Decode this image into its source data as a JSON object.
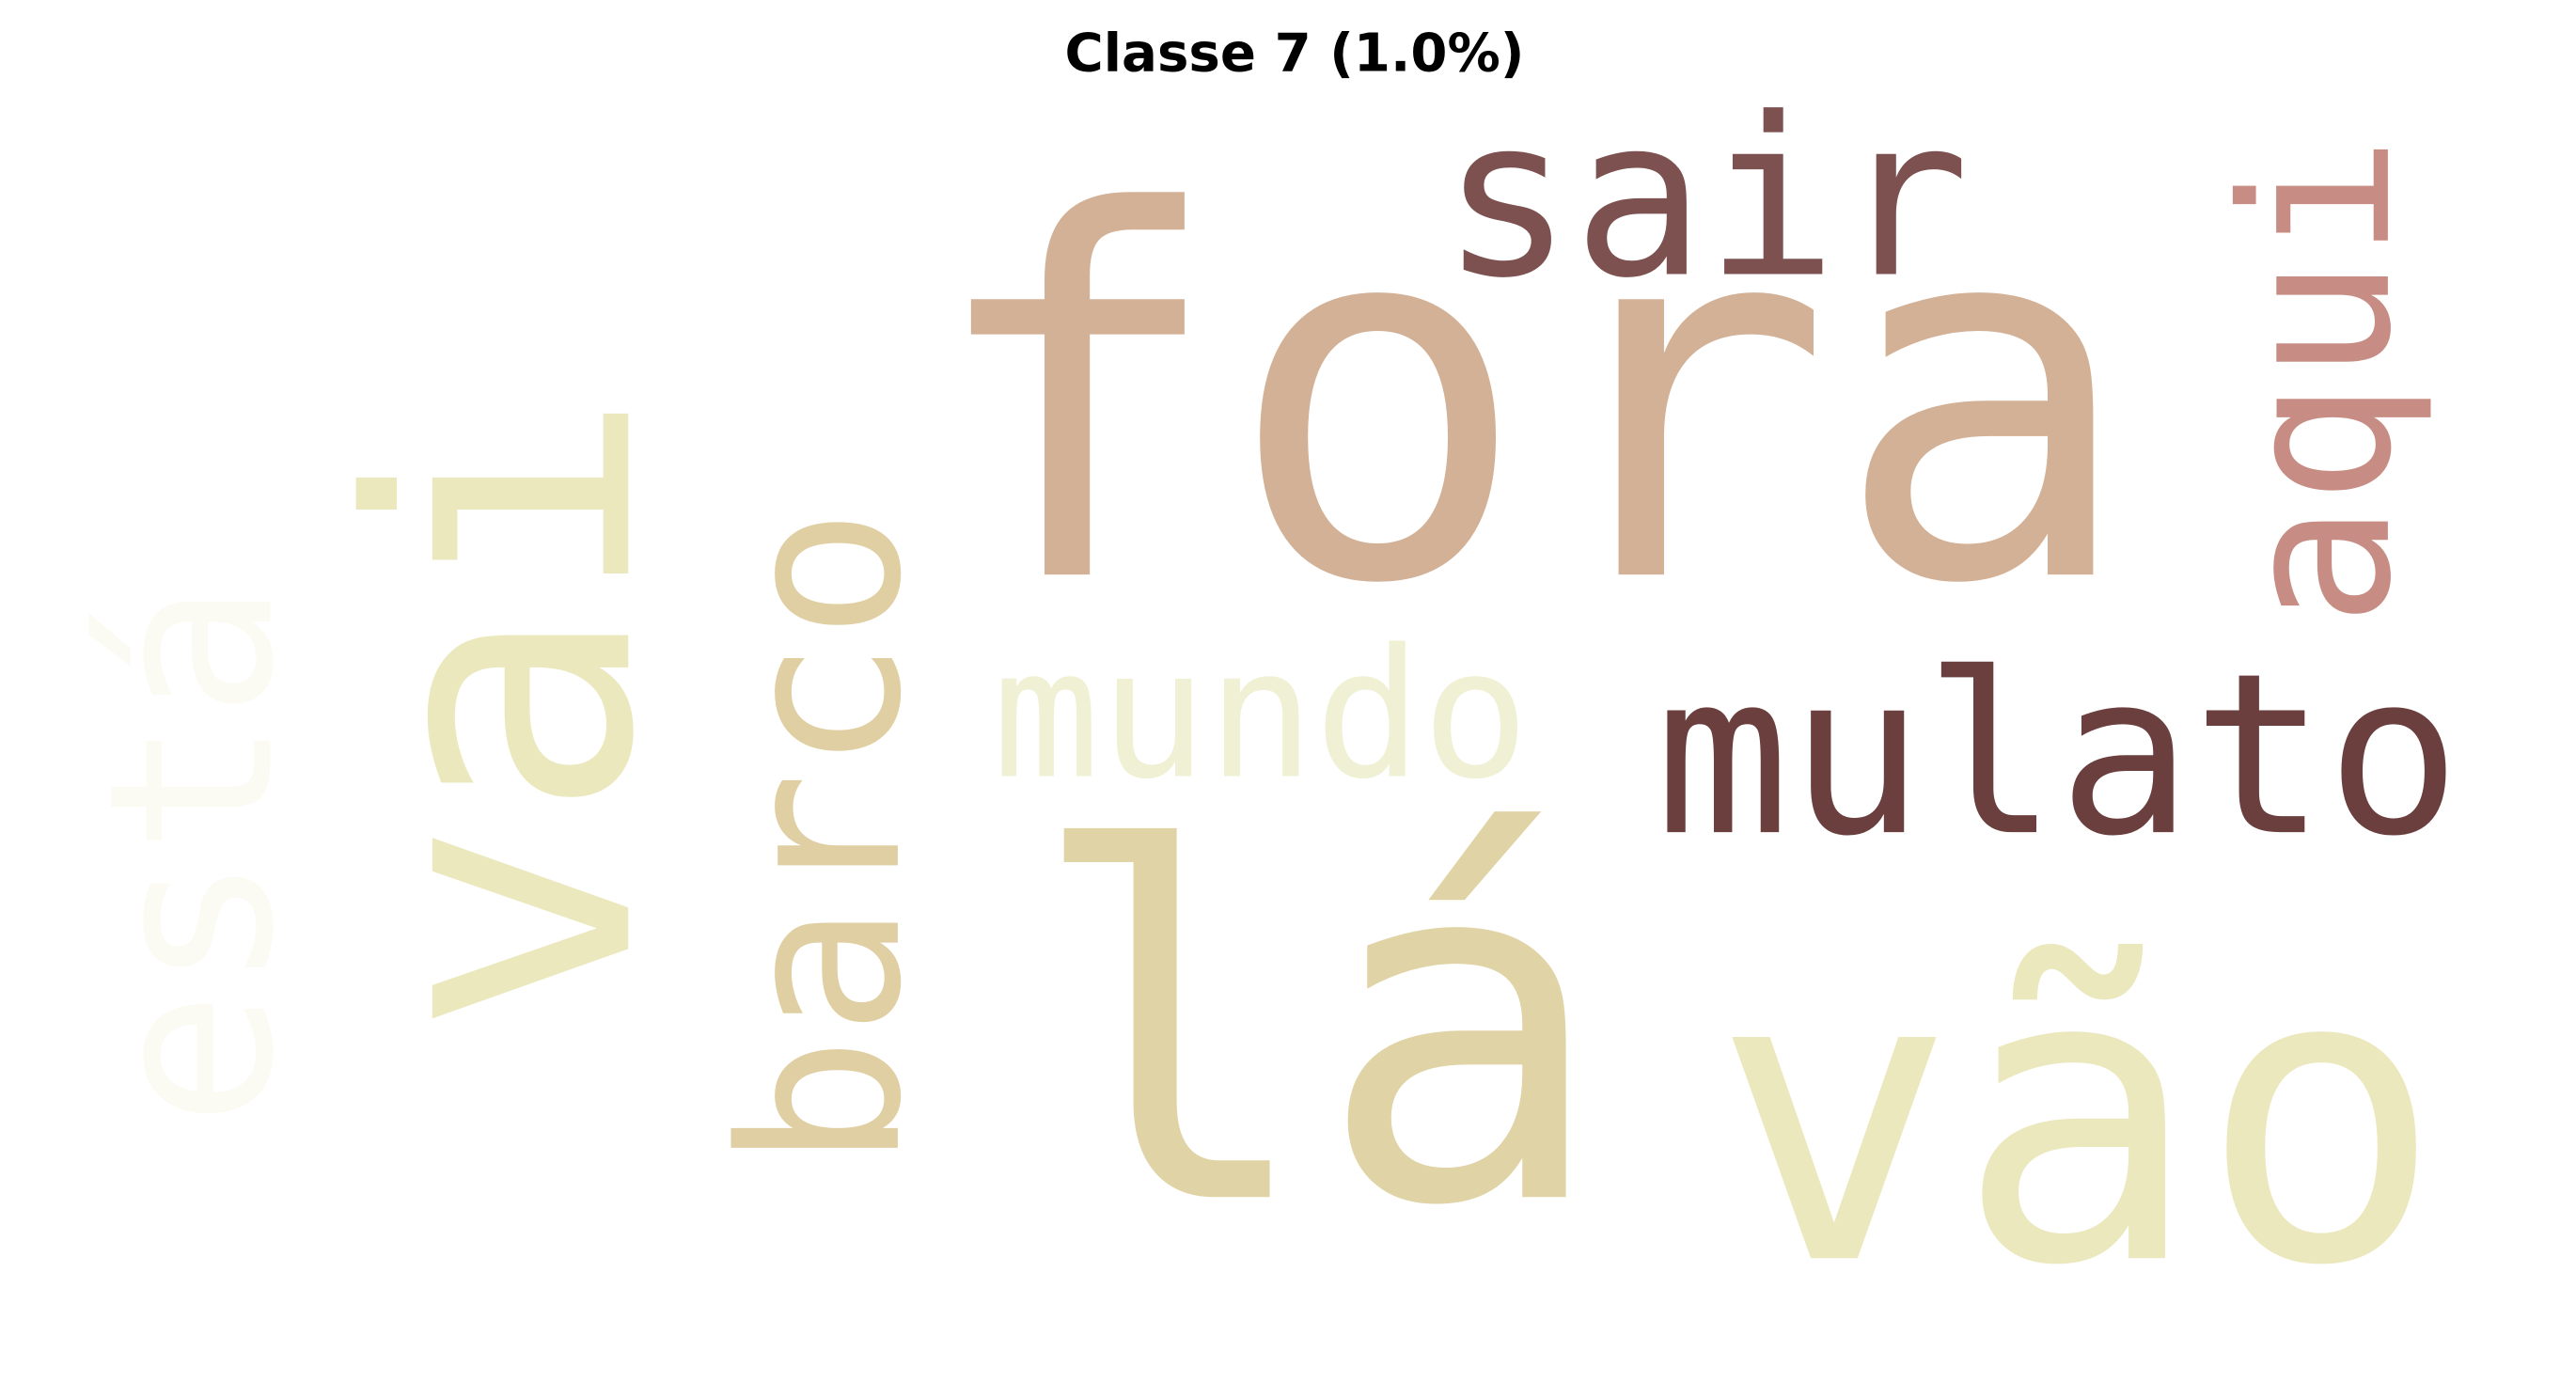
{
  "title": "Classe 7 (1.0%)",
  "words": [
    {
      "text": "fora",
      "color": "#d3b196"
    },
    {
      "text": "lá",
      "color": "#e0d4a6"
    },
    {
      "text": "vai",
      "color": "#ebe8bd"
    },
    {
      "text": "vão",
      "color": "#ebe8bd"
    },
    {
      "text": "mulato",
      "color": "#6b3f3e"
    },
    {
      "text": "sair",
      "color": "#7d5150"
    },
    {
      "text": "barco",
      "color": "#e0cfa3"
    },
    {
      "text": "aqui",
      "color": "#c78d84"
    },
    {
      "text": "mundo",
      "color": "#f0f0d5"
    },
    {
      "text": "está",
      "color": "#fbfbf4"
    }
  ]
}
